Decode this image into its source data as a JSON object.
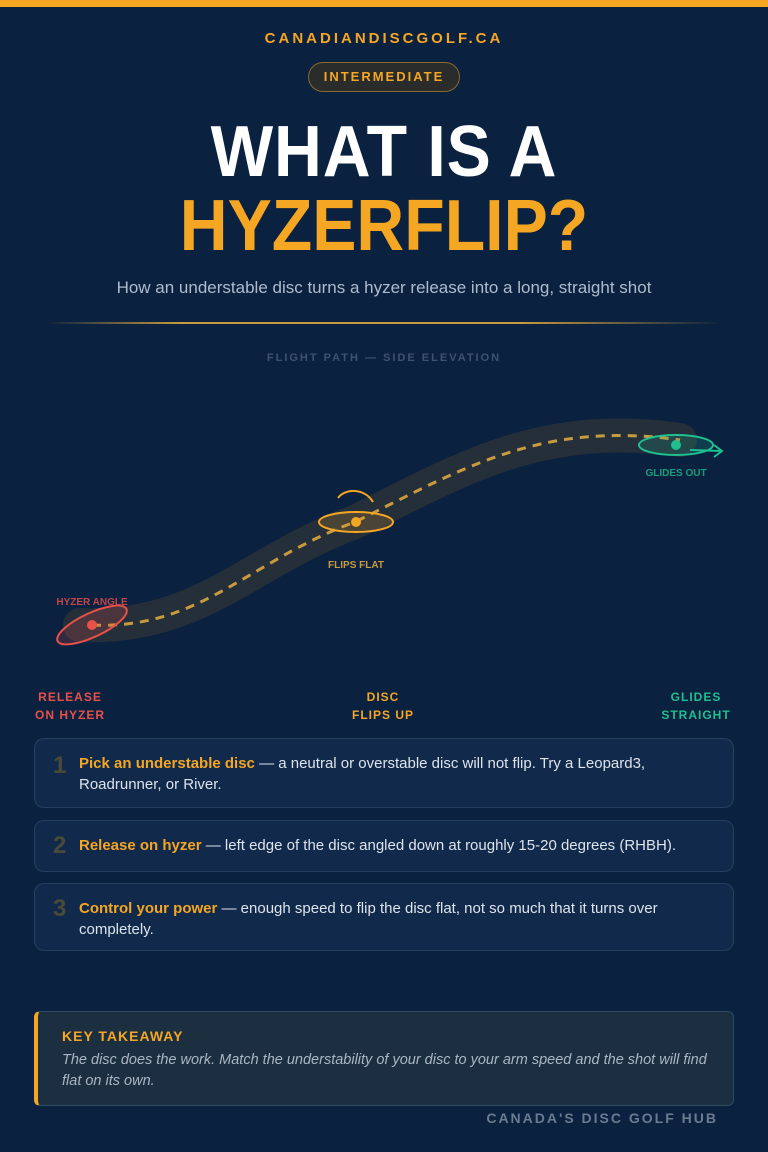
{
  "brand": "CANADIANDISCGOLF.CA",
  "badge": "INTERMEDIATE",
  "title_line1": "WHAT IS A",
  "title_line2": "HYZERFLIP?",
  "subtitle": "How an understable disc turns a hyzer release into a long, straight shot",
  "diagram": {
    "label": "FLIGHT PATH — SIDE ELEVATION",
    "hyzer": "HYZER ANGLE",
    "flips": "FLIPS FLAT",
    "glides": "GLIDES OUT",
    "colors": {
      "red": "#e8504a",
      "orange": "#f5a623",
      "green": "#1fbf8f"
    }
  },
  "stages": [
    {
      "l1": "RELEASE",
      "l2": "ON HYZER"
    },
    {
      "l1": "DISC",
      "l2": "FLIPS UP"
    },
    {
      "l1": "GLIDES",
      "l2": "STRAIGHT"
    }
  ],
  "steps": [
    {
      "num": "1",
      "title": "Pick an understable disc",
      "text": " — a neutral or overstable disc will not flip. Try a Leopard3, Roadrunner, or River."
    },
    {
      "num": "2",
      "title": "Release on hyzer",
      "text": " — left edge of the disc angled down at roughly 15-20 degrees (RHBH)."
    },
    {
      "num": "3",
      "title": "Control your power",
      "text": " — enough speed to flip the disc flat, not so much that it turns over completely."
    }
  ],
  "takeaway": {
    "heading": "KEY TAKEAWAY",
    "text": "The disc does the work. Match the understability of your disc to your arm speed and the shot will find flat on its own."
  },
  "footer": "CANADA'S DISC GOLF HUB"
}
